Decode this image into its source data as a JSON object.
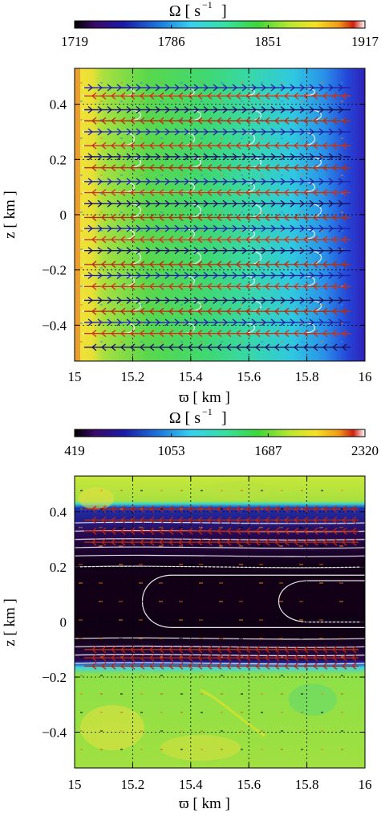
{
  "chart_data": [
    {
      "type": "heatmap",
      "colorbar": {
        "title": "Ω [ s",
        "title_exp": "−1",
        "title_end": "]",
        "ticks": [
          "1719",
          "1786",
          "1851",
          "1917"
        ],
        "range": [
          1719,
          1917
        ]
      },
      "xlabel": "ϖ [ km ]",
      "ylabel": "z [ km ]",
      "xlim": [
        15,
        16
      ],
      "ylim": [
        -0.53,
        0.53
      ],
      "xticks": [
        "15",
        "15.2",
        "15.4",
        "15.6",
        "15.8",
        "16"
      ],
      "yticks": [
        "−0.4",
        "−0.2",
        "0",
        "0.2",
        "0.4"
      ],
      "grid": true,
      "stream_rows_z": [
        0.46,
        0.43,
        0.38,
        0.34,
        0.3,
        0.25,
        0.21,
        0.17,
        0.12,
        0.08,
        0.04,
        -0.01,
        -0.05,
        -0.09,
        -0.13,
        -0.18,
        -0.22,
        -0.26,
        -0.31,
        -0.35,
        -0.39,
        -0.43,
        -0.48
      ],
      "stream_rows_dir": [
        1,
        -1,
        1,
        -1,
        1,
        -1,
        1,
        -1,
        1,
        -1,
        1,
        -1,
        1,
        -1,
        1,
        -1,
        1,
        -1,
        1,
        -1,
        1,
        -1,
        -1
      ]
    },
    {
      "type": "heatmap",
      "colorbar": {
        "title": "Ω [ s",
        "title_exp": "−1",
        "title_end": "]",
        "ticks": [
          "419",
          "1053",
          "1687",
          "2320"
        ],
        "range": [
          419,
          2320
        ]
      },
      "xlabel": "ϖ [ km ]",
      "ylabel": "z [ km ]",
      "xlim": [
        15,
        16
      ],
      "ylim": [
        -0.53,
        0.53
      ],
      "xticks": [
        "15",
        "15.2",
        "15.4",
        "15.6",
        "15.8",
        "16"
      ],
      "yticks": [
        "−0.4",
        "−0.2",
        "0",
        "0.2",
        "0.4"
      ],
      "grid": true,
      "band_z": [
        -0.18,
        0.38
      ],
      "stream_rows_z": [
        0.41,
        0.37,
        0.33,
        0.29,
        -0.1,
        -0.13,
        -0.16
      ],
      "stream_rows_dir": [
        -1,
        -1,
        -1,
        -1,
        -1,
        -1,
        -1
      ]
    }
  ]
}
